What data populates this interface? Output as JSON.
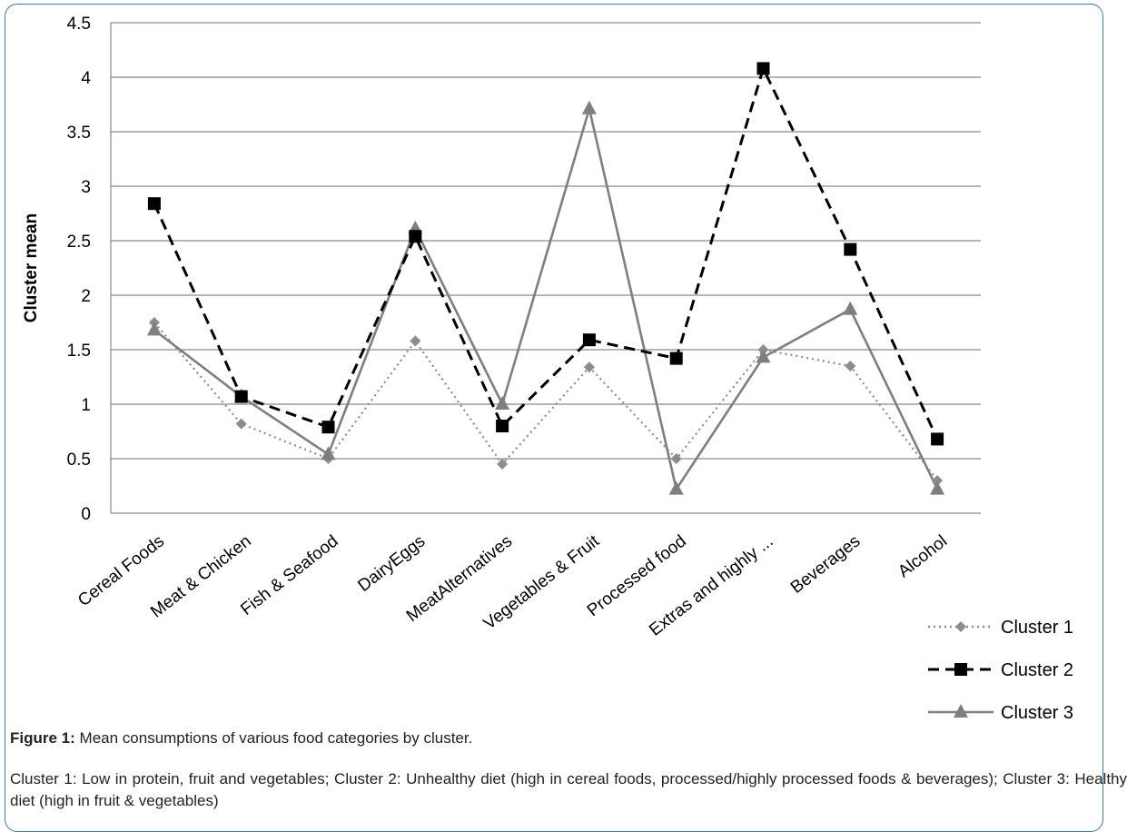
{
  "chart_data": {
    "type": "line",
    "title": "",
    "xlabel": "",
    "ylabel": "Cluster mean",
    "ylim": [
      0,
      4.5
    ],
    "yticks": [
      "0",
      "0.5",
      "1",
      "1.5",
      "2",
      "2.5",
      "3",
      "3.5",
      "4",
      "4.5"
    ],
    "grid": true,
    "legend_position": "right",
    "categories": [
      "Cereal Foods",
      "Meat & Chicken",
      "Fish & Seafood",
      "DairyEggs",
      "MeatAlternatives",
      "Vegetables & Fruit",
      "Processed food",
      "Extras and highly ...",
      "Beverages",
      "Alcohol"
    ],
    "series": [
      {
        "name": "Cluster 1",
        "style": "dotted",
        "marker": "diamond",
        "color": "#8c8c8c",
        "values": [
          1.75,
          0.82,
          0.5,
          1.58,
          0.45,
          1.34,
          0.5,
          1.5,
          1.35,
          0.3
        ]
      },
      {
        "name": "Cluster 2",
        "style": "dashed",
        "marker": "square",
        "color": "#000000",
        "values": [
          2.84,
          1.07,
          0.79,
          2.54,
          0.8,
          1.59,
          1.42,
          4.08,
          2.42,
          0.68
        ]
      },
      {
        "name": "Cluster 3",
        "style": "solid",
        "marker": "triangle",
        "color": "#7f7f7f",
        "values": [
          1.68,
          1.07,
          0.54,
          2.61,
          1.0,
          3.71,
          0.22,
          1.43,
          1.87,
          0.22
        ]
      }
    ]
  },
  "caption": {
    "label": "Figure 1:",
    "title": "Mean consumptions of various food categories by cluster.",
    "body": "Cluster 1: Low in protein, fruit and vegetables; Cluster 2: Unhealthy diet (high in cereal foods, processed/highly processed foods & beverages); Cluster 3: Healthy diet (high in fruit & vegetables)"
  }
}
